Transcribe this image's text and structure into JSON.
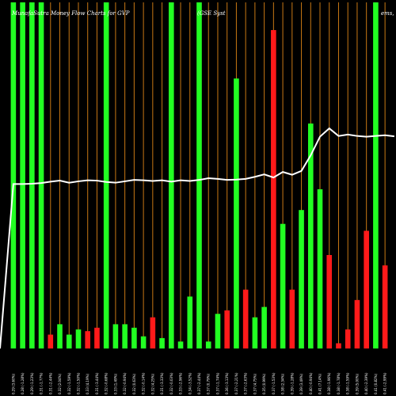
{
  "title_left": "MunafaSutra  Money Flow  Charts for GVP",
  "title_right": "(GSE Syst",
  "title_edge": "ems,",
  "colors": {
    "background": "#000000",
    "up": "#22ff22",
    "down": "#ff1a1a",
    "grid": "#c87814",
    "line": "#ffffff"
  },
  "chart_data": {
    "type": "bar",
    "ylim": [
      0,
      100
    ],
    "bars": [
      {
        "label": "0.29 (3.60%)",
        "value": 100,
        "color": "up"
      },
      {
        "label": "0.28 (-1.28%)",
        "value": 100,
        "color": "up"
      },
      {
        "label": "0.29 (-1.23%)",
        "value": 100,
        "color": "up"
      },
      {
        "label": "0.31 (-1.77%)",
        "value": 100,
        "color": "up"
      },
      {
        "label": "0.31 (-2.44%)",
        "value": 4,
        "color": "down"
      },
      {
        "label": "0.32 (2.04%)",
        "value": 7,
        "color": "up"
      },
      {
        "label": "0.32 (-1.59%)",
        "value": 4,
        "color": "up"
      },
      {
        "label": "0.32 (-1.50%)",
        "value": 5.5,
        "color": "up"
      },
      {
        "label": "0.33 (4.19%)",
        "value": 5,
        "color": "down"
      },
      {
        "label": "0.31 (-3.44%)",
        "value": 6,
        "color": "down"
      },
      {
        "label": "0.32 (-0.68%)",
        "value": 100,
        "color": "up"
      },
      {
        "label": "0.33 (1.49%)",
        "value": 7,
        "color": "up"
      },
      {
        "label": "0.32 (-0.94%)",
        "value": 7,
        "color": "up"
      },
      {
        "label": "0.32 (0.63%)",
        "value": 6,
        "color": "up"
      },
      {
        "label": "0.32 (-0.14%)",
        "value": 3.5,
        "color": "up"
      },
      {
        "label": "0.32 (4.25%)",
        "value": 9,
        "color": "down"
      },
      {
        "label": "0.31 (-3.33%)",
        "value": 3,
        "color": "up"
      },
      {
        "label": "0.32 (-0.03%)",
        "value": 100,
        "color": "up"
      },
      {
        "label": "0.33 (-2.96%)",
        "value": 2,
        "color": "up"
      },
      {
        "label": "0.34 (-3.52%)",
        "value": 15,
        "color": "up"
      },
      {
        "label": "0.37 (-2.44%)",
        "value": 100,
        "color": "up"
      },
      {
        "label": "0.37 (0.79%)",
        "value": 2,
        "color": "up"
      },
      {
        "label": "0.37 (-1.74%)",
        "value": 10,
        "color": "up"
      },
      {
        "label": "0.36 (-3.13%)",
        "value": 11,
        "color": "down"
      },
      {
        "label": "0.37 (-2.21%)",
        "value": 78,
        "color": "up"
      },
      {
        "label": "0.37 (-2.63%)",
        "value": 17,
        "color": "down"
      },
      {
        "label": "0.37 (4.75%)",
        "value": 9,
        "color": "up"
      },
      {
        "label": "0.35 (0.99%)",
        "value": 12,
        "color": "up"
      },
      {
        "label": "0.37 (-1.53%)",
        "value": 92,
        "color": "down"
      },
      {
        "label": "0.38 (2.34%)",
        "value": 36,
        "color": "up"
      },
      {
        "label": "0.39 (-1.28%)",
        "value": 17,
        "color": "down"
      },
      {
        "label": "0.39 (3.49%)",
        "value": 40,
        "color": "up"
      },
      {
        "label": "0.40 (-0.94%)",
        "value": 65,
        "color": "up"
      },
      {
        "label": "0.41 (7.14%)",
        "value": 46,
        "color": "up"
      },
      {
        "label": "0.38 (-1.96%)",
        "value": 27,
        "color": "down"
      },
      {
        "label": "0.38 (-1.78%)",
        "value": 1.5,
        "color": "down"
      },
      {
        "label": "0.38 (-1.59%)",
        "value": 5.5,
        "color": "down"
      },
      {
        "label": "0.39 (5.00%)",
        "value": 14,
        "color": "down"
      },
      {
        "label": "0.40 (-2.39%)",
        "value": 34,
        "color": "down"
      },
      {
        "label": "0.41 (0.82%)",
        "value": 100,
        "color": "up"
      },
      {
        "label": "0.41 (-2.99%)",
        "value": 24,
        "color": "down"
      }
    ],
    "line": [
      0,
      47.5,
      47.5,
      47.6,
      47.8,
      48.2,
      48.5,
      47.9,
      48.3,
      48.6,
      48.5,
      48.1,
      47.9,
      48.3,
      48.7,
      48.6,
      48.4,
      48.6,
      48.2,
      48.6,
      48.4,
      48.7,
      49.2,
      49.0,
      48.7,
      48.8,
      49.0,
      49.6,
      50.3,
      49.4,
      51.0,
      50.2,
      51.3,
      55.8,
      61.2,
      63.6,
      61.4,
      61.8,
      61.4,
      61.2,
      61.4,
      61.6,
      61.3
    ]
  }
}
